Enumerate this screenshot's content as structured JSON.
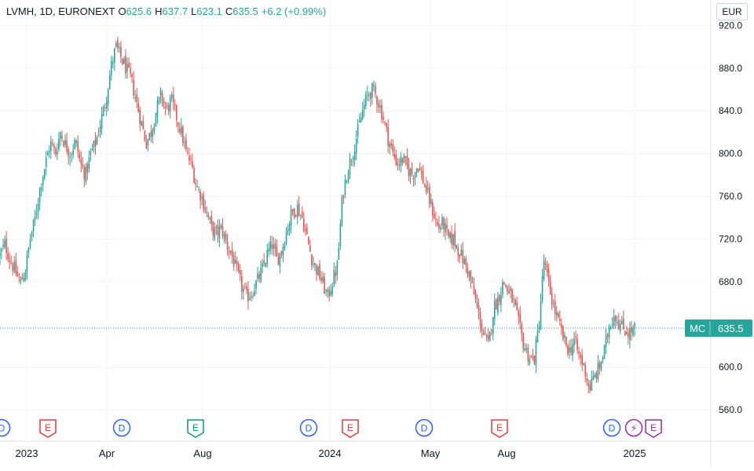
{
  "legend": {
    "symbol": "LVMH, 1D, EURONEXT",
    "open_label": "O",
    "open": "625.6",
    "high_label": "H",
    "high": "637.7",
    "low_label": "L",
    "low": "623.1",
    "close_label": "C",
    "close": "635.5",
    "change": "+6.2 (+0.99%)"
  },
  "currency_button": "EUR",
  "price_label": {
    "ticker": "MC",
    "value": "635.5"
  },
  "colors": {
    "up": "#26a69a",
    "down": "#ef5350",
    "dividend": "#2962ff",
    "earnings": "#e53935",
    "earnings_green": "#089981",
    "split": "#9c27b0"
  },
  "chart_data": {
    "type": "candlestick",
    "yticks": [
      560,
      600,
      640,
      680,
      720,
      760,
      800,
      840,
      880,
      920
    ],
    "ytick_labels": [
      "560.0",
      "600.0",
      "640.0",
      "680.0",
      "720.0",
      "760.0",
      "800.0",
      "840.0",
      "880.0",
      "920.0"
    ],
    "xtick_labels": [
      "2023",
      "Apr",
      "Aug",
      "2024",
      "May",
      "Aug",
      "2025"
    ],
    "last_price": 635.5,
    "weekly_closes": [
      705,
      715,
      700,
      690,
      678,
      690,
      720,
      740,
      770,
      790,
      810,
      800,
      820,
      808,
      800,
      812,
      790,
      780,
      800,
      810,
      830,
      850,
      880,
      900,
      890,
      880,
      870,
      850,
      830,
      810,
      820,
      840,
      855,
      840,
      850,
      835,
      820,
      800,
      790,
      770,
      760,
      745,
      730,
      725,
      730,
      715,
      705,
      690,
      675,
      665,
      670,
      680,
      690,
      705,
      715,
      700,
      710,
      730,
      745,
      750,
      740,
      720,
      700,
      690,
      680,
      665,
      680,
      695,
      760,
      785,
      800,
      820,
      840,
      855,
      860,
      850,
      835,
      815,
      800,
      790,
      795,
      785,
      780,
      790,
      775,
      760,
      745,
      730,
      735,
      720,
      720,
      710,
      700,
      690,
      670,
      650,
      630,
      620,
      655,
      665,
      680,
      670,
      660,
      640,
      620,
      610,
      605,
      640,
      700,
      675,
      655,
      640,
      625,
      615,
      625,
      610,
      600,
      580,
      590,
      600,
      615,
      640,
      650,
      640,
      635,
      632,
      636
    ],
    "markers": [
      {
        "type": "D",
        "label": "D"
      },
      {
        "type": "E",
        "label": "E"
      },
      {
        "type": "D",
        "label": "D"
      },
      {
        "type": "E",
        "label": "E"
      },
      {
        "type": "D",
        "label": "D"
      },
      {
        "type": "E",
        "label": "E"
      },
      {
        "type": "D",
        "label": "D"
      },
      {
        "type": "E",
        "label": "E"
      },
      {
        "type": "D",
        "label": "D"
      },
      {
        "type": "S",
        "label": "⚡"
      },
      {
        "type": "E",
        "label": "E"
      }
    ]
  }
}
